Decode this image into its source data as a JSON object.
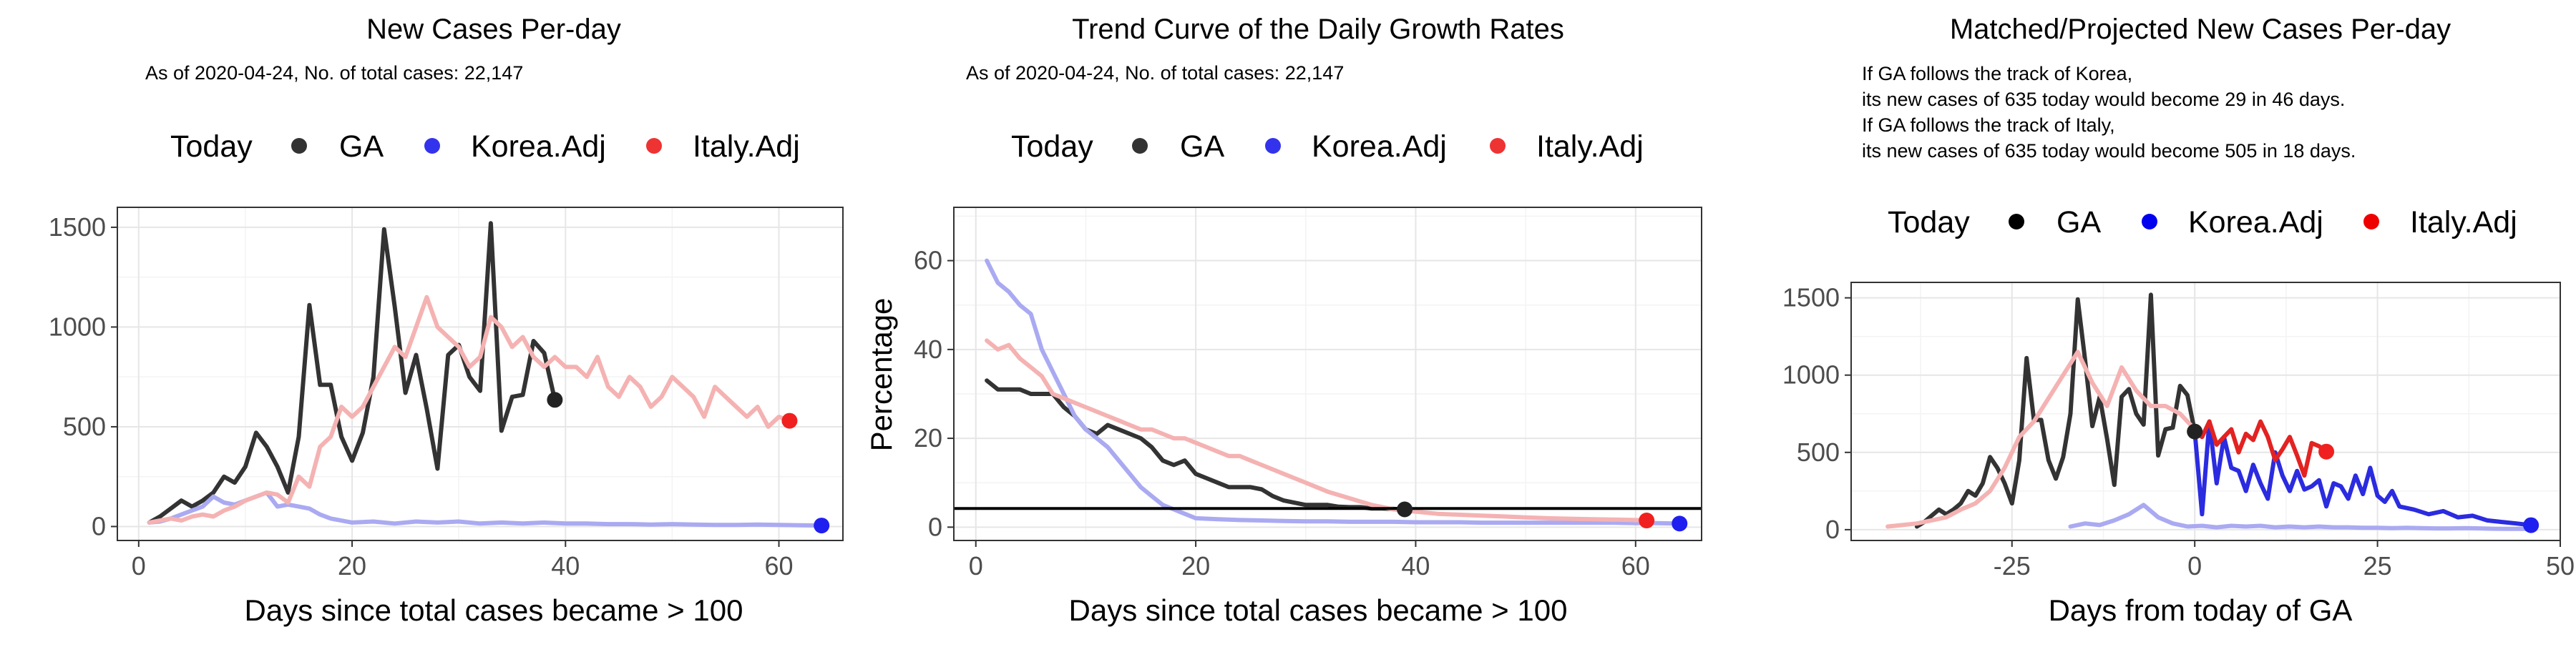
{
  "colors": {
    "ga": "#333333",
    "ga_point": "#222222",
    "korea": "#aaaaf2",
    "korea_point": "#1f1ff0",
    "italy": "#f5b2b2",
    "italy_point": "#f02020",
    "korea_proj": "#2b2be0",
    "italy_proj": "#e32222",
    "legend_ga": "#333333",
    "legend_korea": "#3333ee",
    "legend_italy": "#ee3333",
    "legend_ga_p3": "#000000",
    "legend_korea_p3": "#0000ee",
    "legend_italy_p3": "#ee0000"
  },
  "legend": {
    "today": "Today",
    "ga": "GA",
    "korea": "Korea.Adj",
    "italy": "Italy.Adj"
  },
  "panels": [
    {
      "title": "New Cases Per-day",
      "subtitle": "As of 2020-04-24, No. of total cases: 22,147",
      "xlabel": "Days since total cases became > 100",
      "ylabel": ""
    },
    {
      "title": "Trend Curve of the Daily Growth Rates",
      "subtitle": "As of 2020-04-24, No. of total cases: 22,147",
      "xlabel": "Days since total cases became > 100",
      "ylabel": "Percentage"
    },
    {
      "title": "Matched/Projected New Cases Per-day",
      "notes": [
        "If GA follows the track of Korea,",
        "its new cases of 635 today would become 29 in 46 days.",
        "If GA follows the track of Italy,",
        "its new cases of 635 today would become 505 in 18 days."
      ],
      "xlabel": "Days from today of GA",
      "ylabel": ""
    }
  ],
  "chart_data": [
    {
      "type": "line",
      "title": "New Cases Per-day",
      "xlabel": "Days since total cases became > 100",
      "xlim": [
        -2,
        66
      ],
      "ylim": [
        -70,
        1600
      ],
      "xticks": [
        0,
        20,
        40,
        60
      ],
      "yticks": [
        0,
        500,
        1000,
        1500
      ],
      "series": [
        {
          "name": "GA",
          "x": [
            1,
            2,
            3,
            4,
            5,
            6,
            7,
            8,
            9,
            10,
            11,
            12,
            13,
            14,
            15,
            16,
            17,
            18,
            19,
            20,
            21,
            22,
            23,
            24,
            25,
            26,
            27,
            28,
            29,
            30,
            31,
            32,
            33,
            34,
            35,
            36,
            37,
            38,
            39
          ],
          "y": [
            20,
            50,
            90,
            130,
            100,
            130,
            170,
            250,
            220,
            300,
            470,
            400,
            300,
            170,
            450,
            1110,
            710,
            710,
            450,
            330,
            470,
            750,
            1490,
            1100,
            670,
            860,
            590,
            290,
            860,
            910,
            750,
            680,
            1520,
            480,
            650,
            660,
            930,
            870,
            635
          ]
        },
        {
          "name": "Korea.Adj",
          "x": [
            1,
            2,
            3,
            4,
            5,
            6,
            7,
            8,
            9,
            10,
            11,
            12,
            13,
            14,
            15,
            16,
            17,
            18,
            20,
            22,
            24,
            26,
            28,
            30,
            32,
            34,
            36,
            38,
            40,
            42,
            44,
            46,
            48,
            50,
            52,
            54,
            56,
            58,
            60,
            62,
            64
          ],
          "y": [
            20,
            25,
            40,
            60,
            80,
            100,
            150,
            120,
            110,
            130,
            150,
            170,
            100,
            110,
            100,
            90,
            60,
            40,
            20,
            25,
            15,
            25,
            20,
            25,
            15,
            20,
            15,
            20,
            15,
            15,
            12,
            12,
            10,
            12,
            10,
            8,
            8,
            10,
            8,
            6,
            5
          ]
        },
        {
          "name": "Italy.Adj",
          "x": [
            1,
            2,
            3,
            4,
            5,
            6,
            7,
            8,
            9,
            10,
            11,
            12,
            13,
            14,
            15,
            16,
            17,
            18,
            19,
            20,
            21,
            22,
            23,
            24,
            25,
            26,
            27,
            28,
            29,
            30,
            31,
            32,
            33,
            34,
            35,
            36,
            37,
            38,
            39,
            40,
            41,
            42,
            43,
            44,
            45,
            46,
            47,
            48,
            49,
            50,
            51,
            52,
            53,
            54,
            55,
            56,
            57,
            58,
            59,
            60,
            61
          ],
          "y": [
            20,
            30,
            40,
            30,
            50,
            60,
            50,
            80,
            100,
            130,
            150,
            170,
            160,
            120,
            250,
            200,
            400,
            450,
            600,
            550,
            600,
            700,
            800,
            900,
            850,
            1000,
            1150,
            1000,
            950,
            900,
            800,
            850,
            1050,
            1000,
            900,
            950,
            850,
            800,
            850,
            800,
            800,
            750,
            850,
            700,
            650,
            750,
            700,
            600,
            650,
            750,
            700,
            650,
            550,
            700,
            650,
            600,
            550,
            600,
            500,
            550,
            530
          ]
        }
      ],
      "today_points": [
        {
          "series": "GA",
          "x": 39,
          "y": 635
        },
        {
          "series": "Korea.Adj",
          "x": 64,
          "y": 5
        },
        {
          "series": "Italy.Adj",
          "x": 61,
          "y": 530
        }
      ]
    },
    {
      "type": "line",
      "title": "Trend Curve of the Daily Growth Rates",
      "xlabel": "Days since total cases became > 100",
      "ylabel": "Percentage",
      "xlim": [
        -2,
        66
      ],
      "ylim": [
        -3,
        72
      ],
      "xticks": [
        0,
        20,
        40,
        60
      ],
      "yticks": [
        0,
        20,
        40,
        60
      ],
      "hline": 4.2,
      "series": [
        {
          "name": "GA",
          "x": [
            1,
            2,
            3,
            4,
            5,
            6,
            7,
            8,
            9,
            10,
            11,
            12,
            13,
            14,
            15,
            16,
            17,
            18,
            19,
            20,
            21,
            22,
            23,
            24,
            25,
            26,
            27,
            28,
            29,
            30,
            31,
            32,
            33,
            34,
            35,
            36,
            37,
            38,
            39
          ],
          "y": [
            33,
            31,
            31,
            31,
            30,
            30,
            30,
            27,
            25,
            22,
            21,
            23,
            22,
            21,
            20,
            18,
            15,
            14,
            15,
            12,
            11,
            10,
            9,
            9,
            9,
            8.5,
            7,
            6,
            5.5,
            5,
            5,
            5,
            4.6,
            4.5,
            4.5,
            4.2,
            4.2,
            4.1,
            4
          ]
        },
        {
          "name": "Korea.Adj",
          "x": [
            1,
            2,
            3,
            4,
            5,
            6,
            7,
            8,
            9,
            10,
            11,
            12,
            13,
            14,
            15,
            16,
            17,
            18,
            19,
            20,
            22,
            24,
            26,
            28,
            30,
            32,
            34,
            36,
            38,
            40,
            42,
            44,
            46,
            48,
            50,
            52,
            54,
            56,
            58,
            60,
            62,
            64
          ],
          "y": [
            60,
            55,
            53,
            50,
            48,
            40,
            35,
            30,
            25,
            22,
            20,
            18,
            15,
            12,
            9,
            7,
            5,
            4,
            3,
            2,
            1.8,
            1.6,
            1.5,
            1.4,
            1.3,
            1.3,
            1.2,
            1.2,
            1.2,
            1.1,
            1.1,
            1.1,
            1,
            1,
            1,
            1,
            1,
            1,
            1,
            0.9,
            0.9,
            0.8
          ]
        },
        {
          "name": "Italy.Adj",
          "x": [
            1,
            2,
            3,
            4,
            5,
            6,
            7,
            8,
            9,
            10,
            11,
            12,
            13,
            14,
            15,
            16,
            17,
            18,
            19,
            20,
            21,
            22,
            23,
            24,
            25,
            26,
            27,
            28,
            29,
            30,
            32,
            34,
            36,
            38,
            40,
            42,
            44,
            46,
            48,
            50,
            52,
            54,
            56,
            58,
            60,
            61
          ],
          "y": [
            42,
            40,
            41,
            38,
            36,
            34,
            30,
            29,
            28,
            27,
            26,
            25,
            24,
            23,
            22,
            22,
            21,
            20,
            20,
            19,
            18,
            17,
            16,
            16,
            15,
            14,
            13,
            12,
            11,
            10,
            8,
            6.5,
            5,
            4,
            3.5,
            3,
            2.8,
            2.6,
            2.4,
            2.2,
            2,
            1.9,
            1.8,
            1.7,
            1.6,
            1.5
          ]
        }
      ],
      "today_points": [
        {
          "series": "GA",
          "x": 39,
          "y": 4
        },
        {
          "series": "Korea.Adj",
          "x": 64,
          "y": 0.8
        },
        {
          "series": "Italy.Adj",
          "x": 61,
          "y": 1.5
        }
      ]
    },
    {
      "type": "line",
      "title": "Matched/Projected New Cases Per-day",
      "xlabel": "Days from today of GA",
      "xlim": [
        -47,
        50
      ],
      "ylim": [
        -70,
        1600
      ],
      "xticks": [
        -25,
        0,
        25,
        50
      ],
      "yticks": [
        0,
        500,
        1000,
        1500
      ],
      "series": [
        {
          "name": "GA",
          "x": [
            -38,
            -37,
            -36,
            -35,
            -34,
            -33,
            -32,
            -31,
            -30,
            -29,
            -28,
            -27,
            -26,
            -25,
            -24,
            -23,
            -22,
            -21,
            -20,
            -19,
            -18,
            -17,
            -16,
            -15,
            -14,
            -13,
            -12,
            -11,
            -10,
            -9,
            -8,
            -7,
            -6,
            -5,
            -4,
            -3,
            -2,
            -1,
            0
          ],
          "y": [
            20,
            50,
            90,
            130,
            100,
            130,
            170,
            250,
            220,
            300,
            470,
            400,
            300,
            170,
            450,
            1110,
            710,
            710,
            450,
            330,
            470,
            750,
            1490,
            1100,
            670,
            860,
            590,
            290,
            860,
            910,
            750,
            680,
            1520,
            480,
            650,
            660,
            930,
            870,
            635
          ]
        },
        {
          "name": "Korea.Adj (matched)",
          "x": [
            -17,
            -15,
            -13,
            -11,
            -9,
            -7,
            -5,
            -3,
            -1,
            1,
            3,
            5,
            7,
            9,
            11,
            13,
            15,
            17,
            19,
            21,
            23,
            25,
            27,
            29,
            31,
            33,
            35,
            37,
            39,
            41,
            43,
            45,
            46
          ],
          "y": [
            20,
            40,
            30,
            60,
            100,
            160,
            80,
            40,
            20,
            25,
            15,
            25,
            20,
            25,
            15,
            20,
            15,
            20,
            15,
            15,
            12,
            12,
            10,
            12,
            10,
            8,
            8,
            10,
            8,
            6,
            5,
            6,
            5
          ]
        },
        {
          "name": "Italy.Adj (matched)",
          "x": [
            -42,
            -40,
            -38,
            -36,
            -34,
            -32,
            -30,
            -28,
            -26,
            -24,
            -22,
            -20,
            -18,
            -16,
            -14,
            -12,
            -10,
            -8,
            -6,
            -4,
            -2,
            0
          ],
          "y": [
            20,
            30,
            40,
            60,
            80,
            130,
            170,
            250,
            400,
            600,
            700,
            850,
            1000,
            1150,
            950,
            800,
            1050,
            900,
            800,
            800,
            750,
            650
          ]
        },
        {
          "name": "Korea.Adj (projected)",
          "x": [
            0,
            1,
            2,
            3,
            4,
            5,
            6,
            7,
            8,
            9,
            10,
            11,
            12,
            13,
            14,
            15,
            16,
            17,
            18,
            19,
            20,
            21,
            22,
            23,
            24,
            25,
            26,
            27,
            28,
            30,
            32,
            34,
            36,
            38,
            40,
            42,
            44,
            46
          ],
          "y": [
            635,
            100,
            700,
            300,
            600,
            400,
            380,
            250,
            420,
            300,
            200,
            500,
            350,
            250,
            380,
            260,
            280,
            320,
            150,
            300,
            280,
            200,
            350,
            230,
            400,
            220,
            180,
            250,
            150,
            130,
            100,
            120,
            80,
            90,
            60,
            50,
            40,
            29
          ]
        },
        {
          "name": "Italy.Adj (projected)",
          "x": [
            0,
            1,
            2,
            3,
            4,
            5,
            6,
            7,
            8,
            9,
            10,
            11,
            12,
            13,
            14,
            15,
            16,
            17,
            18
          ],
          "y": [
            635,
            600,
            700,
            550,
            600,
            650,
            500,
            620,
            580,
            700,
            600,
            450,
            520,
            600,
            480,
            350,
            560,
            540,
            505
          ]
        }
      ],
      "today_points": [
        {
          "series": "GA",
          "x": 0,
          "y": 635
        },
        {
          "series": "Korea.Adj",
          "x": 46,
          "y": 29
        },
        {
          "series": "Italy.Adj",
          "x": 18,
          "y": 505
        }
      ]
    }
  ]
}
